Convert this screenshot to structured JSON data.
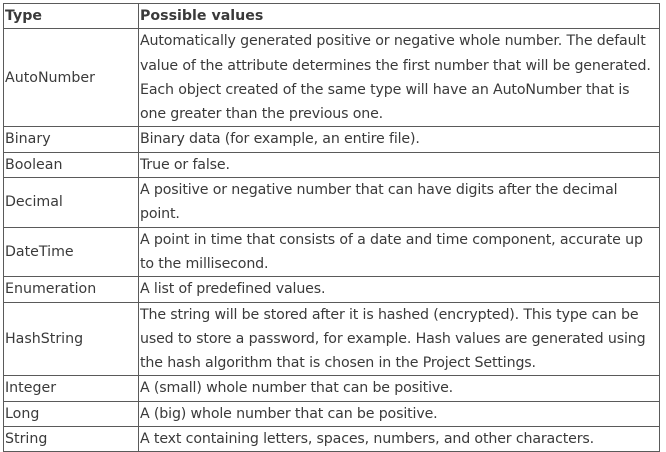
{
  "table": {
    "headers": {
      "type": "Type",
      "values": "Possible values"
    },
    "rows": [
      {
        "type": "AutoNumber",
        "description": "Automatically generated positive or negative whole number. The default value of the attribute determines the first number that will be generated. Each object created of the same type will have an AutoNumber that is one greater than the previous one."
      },
      {
        "type": "Binary",
        "description": "Binary data (for example, an entire file)."
      },
      {
        "type": "Boolean",
        "description": "True or false."
      },
      {
        "type": "Decimal",
        "description": "A positive or negative number that can have digits after the decimal point."
      },
      {
        "type": "DateTime",
        "description": "A point in time that consists of a date and time component, accurate up to the millisecond."
      },
      {
        "type": "Enumeration",
        "description": "A list of predefined values."
      },
      {
        "type": "HashString",
        "description": "The string will be stored after it is hashed (encrypted). This type can be used to store a password, for example. Hash values are generated using the hash algorithm that is chosen in the Project Settings."
      },
      {
        "type": "Integer",
        "description": "A (small) whole number that can be positive."
      },
      {
        "type": "Long",
        "description": "A (big) whole number that can be positive."
      },
      {
        "type": "String",
        "description": "A text containing letters, spaces, numbers, and other characters."
      }
    ]
  }
}
